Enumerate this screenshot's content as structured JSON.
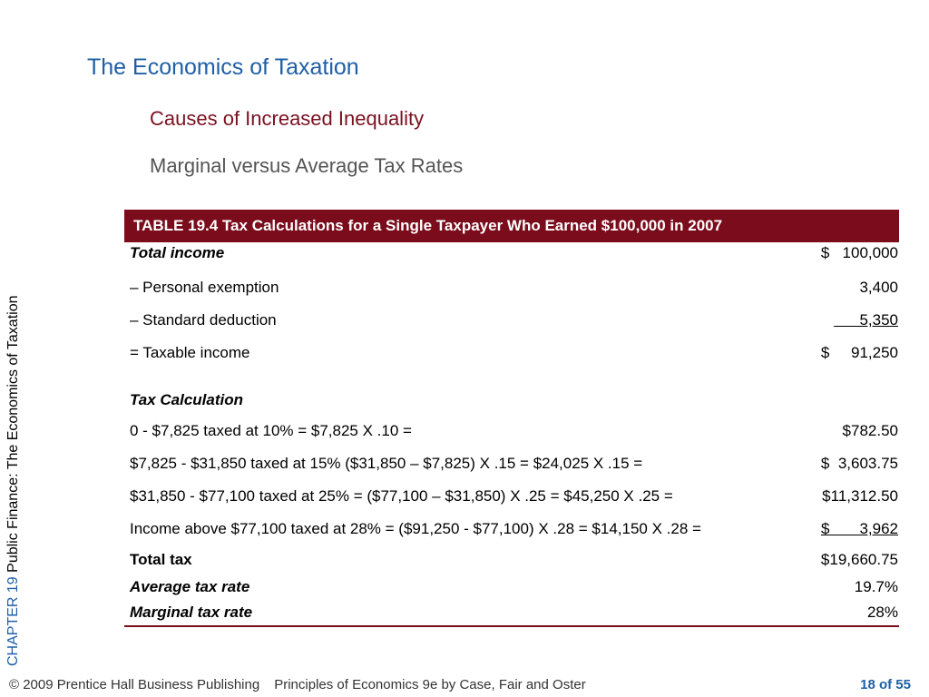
{
  "slide": {
    "title": "The Economics of Taxation",
    "subtitle1": "Causes of Increased Inequality",
    "subtitle2": "Marginal versus Average Tax Rates"
  },
  "sidebar": {
    "chapter": "CHAPTER 19",
    "book": "Public Finance: The Economics of Taxation"
  },
  "table": {
    "title": "TABLE 19.4  Tax Calculations for a Single Taxpayer Who Earned $100,000 in 2007",
    "total_income_label": "Total income",
    "total_income_value": "$   100,000",
    "personal_exemption_label": "– Personal exemption",
    "personal_exemption_value": "3,400",
    "standard_deduction_label": "– Standard deduction",
    "standard_deduction_value": "      5,350",
    "taxable_income_label": "= Taxable income",
    "taxable_income_value": "$     91,250",
    "tax_calc_heading": "Tax Calculation",
    "brackets": [
      {
        "label": "0 - $7,825 taxed at 10% = $7,825 X .10 =",
        "value": "$782.50"
      },
      {
        "label": "$7,825 - $31,850 taxed at 15% ($31,850 – $7,825) X .15 = $24,025 X .15 =",
        "value": "$  3,603.75"
      },
      {
        "label": "$31,850 - $77,100 taxed at 25% = ($77,100 – $31,850) X .25 = $45,250 X .25 =",
        "value": "$11,312.50"
      },
      {
        "label": "Income above $77,100 taxed at 28% = ($91,250 - $77,100) X .28 = $14,150 X .28 =",
        "value": "$       3,962"
      }
    ],
    "total_tax_label": "Total tax",
    "total_tax_value": "$19,660.75",
    "avg_rate_label": "Average tax rate",
    "avg_rate_value": "19.7%",
    "marg_rate_label": "Marginal tax rate",
    "marg_rate_value": "28%"
  },
  "footer": {
    "copyright": "© 2009 Prentice Hall Business Publishing",
    "book": "Principles of Economics 9e by Case, Fair and Oster",
    "page": "18 of 55"
  }
}
